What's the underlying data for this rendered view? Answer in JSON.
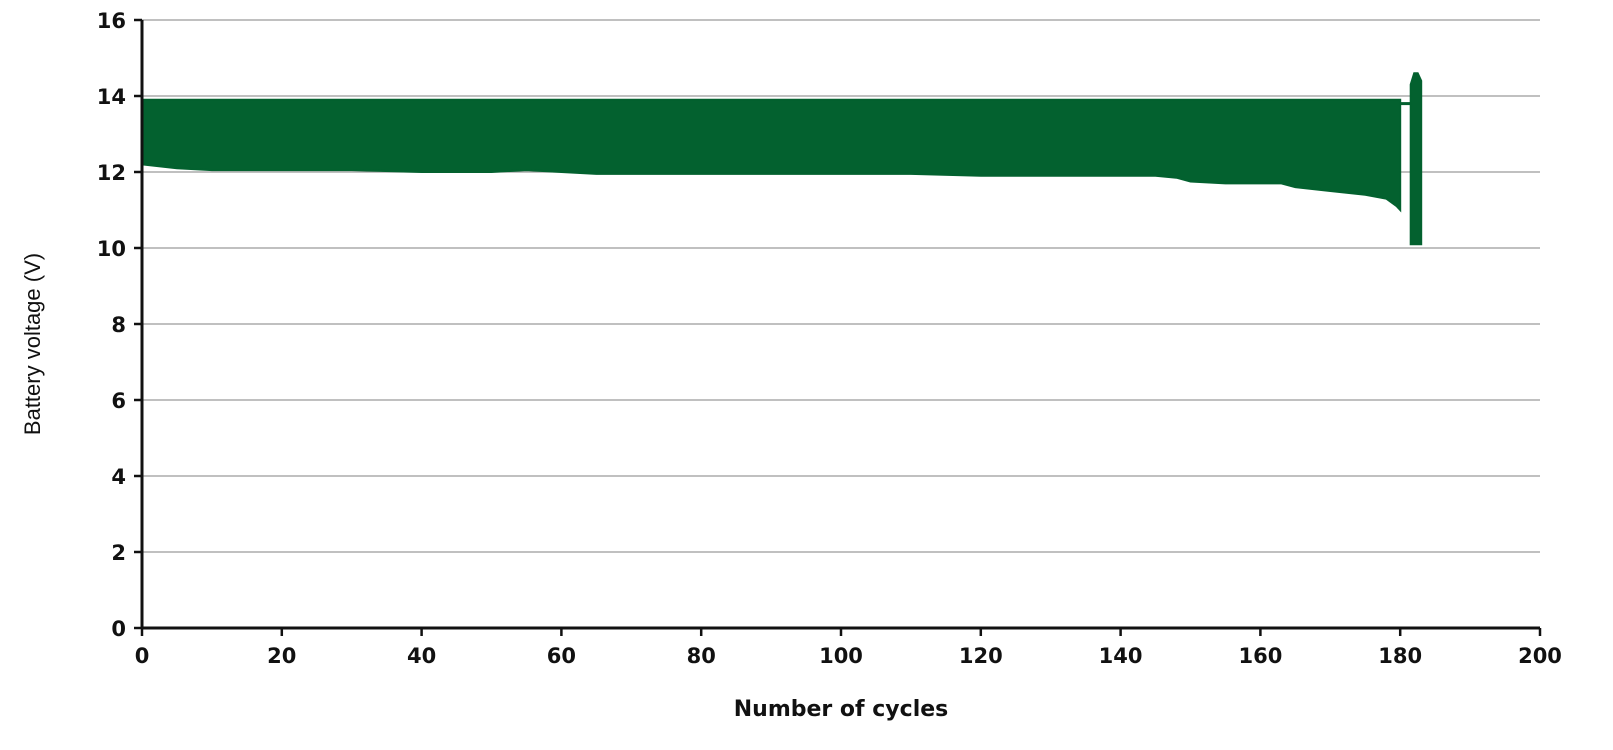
{
  "chart_data": {
    "type": "line",
    "title": "",
    "xlabel": "Number of cycles",
    "ylabel": "Battery voltage (V)",
    "xlim": [
      0,
      200
    ],
    "ylim": [
      0,
      16
    ],
    "xticks": [
      0,
      20,
      40,
      60,
      80,
      100,
      120,
      140,
      160,
      180,
      200
    ],
    "yticks": [
      0,
      2,
      4,
      6,
      8,
      10,
      12,
      14,
      16
    ],
    "grid": "horizontal",
    "legend": "none",
    "series_color": "#03612F",
    "series": [
      {
        "name": "",
        "x": [
          0,
          5,
          10,
          20,
          30,
          40,
          50,
          55,
          60,
          65,
          70,
          80,
          90,
          95,
          100,
          110,
          120,
          130,
          140,
          145,
          148,
          150,
          155,
          160,
          163,
          165,
          170,
          175,
          178,
          179.5,
          180
        ],
        "upper": [
          13.9,
          13.9,
          13.9,
          13.9,
          13.9,
          13.9,
          13.9,
          13.9,
          13.9,
          13.9,
          13.9,
          13.9,
          13.9,
          13.9,
          13.9,
          13.9,
          13.9,
          13.9,
          13.9,
          13.9,
          13.9,
          13.9,
          13.9,
          13.9,
          13.9,
          13.9,
          13.9,
          13.9,
          13.9,
          13.9,
          13.9
        ],
        "lower": [
          12.2,
          12.1,
          12.05,
          12.05,
          12.05,
          12.0,
          12.0,
          12.05,
          12.0,
          11.95,
          11.95,
          11.95,
          11.95,
          11.95,
          11.95,
          11.95,
          11.9,
          11.9,
          11.9,
          11.9,
          11.85,
          11.75,
          11.7,
          11.7,
          11.7,
          11.6,
          11.5,
          11.4,
          11.3,
          11.1,
          11.0
        ]
      },
      {
        "name": "",
        "x": [
          181.5,
          182,
          182.5,
          183
        ],
        "upper": [
          14.3,
          14.6,
          14.6,
          14.4
        ],
        "lower": [
          10.1,
          10.1,
          10.1,
          10.1
        ]
      }
    ]
  }
}
